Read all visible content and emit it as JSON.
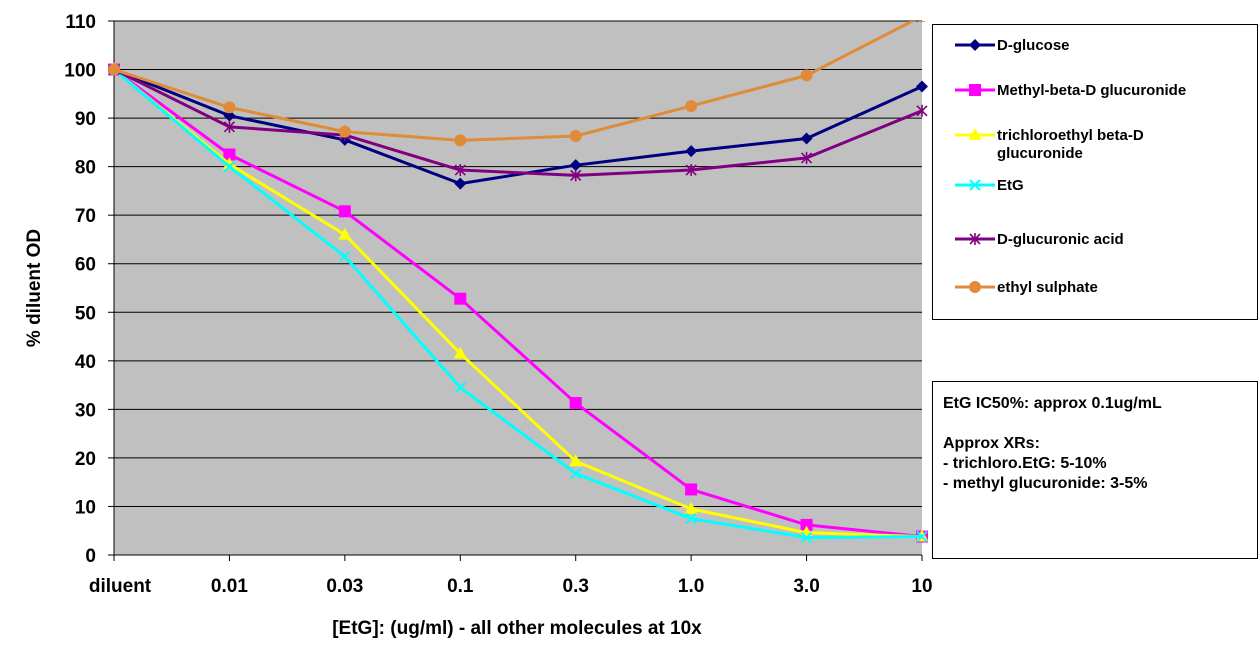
{
  "chart_data": {
    "type": "line",
    "categories": [
      "diluent",
      "0.01",
      "0.03",
      "0.1",
      "0.3",
      "1.0",
      "3.0",
      "10"
    ],
    "xlabel": "[EtG]: (ug/ml) - all other molecules at 10x",
    "ylabel": "% diluent OD",
    "ylim": [
      0,
      110
    ],
    "yticks": [
      0,
      10,
      20,
      30,
      40,
      50,
      60,
      70,
      80,
      90,
      100,
      110
    ],
    "grid": true,
    "plot_background": "#c0c0c0",
    "legend_position": "right",
    "series": [
      {
        "name": "D-glucose",
        "color": "#000080",
        "marker": "diamond",
        "values": [
          100,
          90.5,
          85.5,
          76.5,
          80.3,
          83.2,
          85.8,
          96.5
        ]
      },
      {
        "name": "Methyl-beta-D glucuronide",
        "color": "#ff00ff",
        "marker": "square",
        "values": [
          100,
          82.5,
          70.8,
          52.8,
          31.3,
          13.5,
          6.2,
          3.8
        ]
      },
      {
        "name": "trichloroethyl beta-D glucuronide",
        "legend_lines": [
          "trichloroethyl beta-D",
          "glucuronide"
        ],
        "color": "#ffff00",
        "marker": "triangle",
        "values": [
          100,
          80.5,
          66,
          41.5,
          19.3,
          9.5,
          4.6,
          3.8
        ]
      },
      {
        "name": "EtG",
        "color": "#00ffff",
        "marker": "x",
        "values": [
          100,
          80,
          61.5,
          34.5,
          16.8,
          7.5,
          3.6,
          3.8
        ]
      },
      {
        "name": "D-glucuronic acid",
        "color": "#800080",
        "marker": "star",
        "values": [
          100,
          88.2,
          86.5,
          79.3,
          78.2,
          79.3,
          81.8,
          91.5
        ]
      },
      {
        "name": "ethyl sulphate",
        "color": "#e08b3a",
        "marker": "circle",
        "values": [
          100,
          92.2,
          87.2,
          85.4,
          86.3,
          92.5,
          98.8,
          111
        ]
      }
    ]
  },
  "notes": {
    "line1": "EtG IC50%: approx 0.1ug/mL",
    "line2": "Approx XRs:",
    "line3": "- trichloro.EtG: 5-10%",
    "line4": "- methyl glucuronide: 3-5%"
  }
}
